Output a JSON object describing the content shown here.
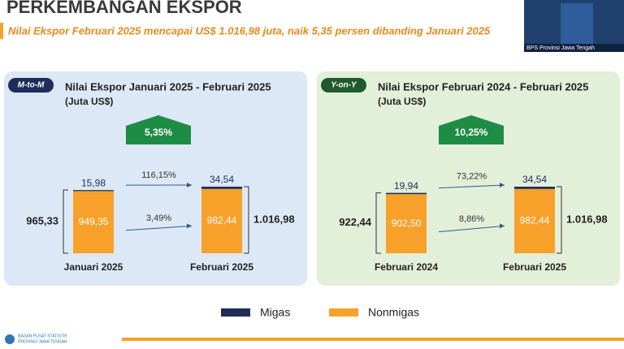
{
  "header": {
    "title": "PERKEMBANGAN EKSPOR",
    "subtitle": "Nilai Ekspor Februari 2025 mencapai US$ 1.016,98 juta, naik 5,35 persen dibanding Januari 2025"
  },
  "inset": {
    "label": "BPS Provinsi Jawa Tengah"
  },
  "footer": {
    "logo_text": [
      "BADAN PUSAT STATISTIK",
      "PROVINSI JAWA TENGAH"
    ]
  },
  "chart_data": [
    {
      "type": "bar",
      "stacked": true,
      "badge": "M-to-M",
      "badge_color": "#1f2d5a",
      "background": "#dce8f5",
      "title": "Nilai Ekspor Januari 2025 - Februari 2025",
      "subtitle": "(Juta US$)",
      "growth": "5,35%",
      "categories": [
        "Januari 2025",
        "Februari 2025"
      ],
      "series": [
        {
          "name": "Migas",
          "color": "#1f2d5a",
          "values": [
            15.98,
            34.54
          ],
          "value_labels": [
            "15,98",
            "34,54"
          ]
        },
        {
          "name": "Nonmigas",
          "color": "#f7a12b",
          "values": [
            949.35,
            982.44
          ],
          "value_labels": [
            "949,35",
            "982,44"
          ]
        }
      ],
      "totals": [
        965.33,
        1016.98
      ],
      "total_labels": [
        "965,33",
        "1.016,98"
      ],
      "change_labels": [
        "116,15%",
        "3,49%"
      ]
    },
    {
      "type": "bar",
      "stacked": true,
      "badge": "Y-on-Y",
      "badge_color": "#1f5a2c",
      "background": "#e2efd9",
      "title": "Nilai Ekspor Februari 2024 - Februari 2025",
      "subtitle": "(Juta US$)",
      "growth": "10,25%",
      "categories": [
        "Februari 2024",
        "Februari 2025"
      ],
      "series": [
        {
          "color": "#1f2d5a",
          "values": [
            19.94,
            34.54
          ],
          "value_labels": [
            "19,94",
            "34,54"
          ]
        },
        {
          "color": "#f7a12b",
          "values": [
            902.5,
            982.44
          ],
          "value_labels": [
            "902,50",
            "982,44"
          ]
        }
      ],
      "totals": [
        922.44,
        1016.98
      ],
      "total_labels": [
        "922,44",
        "1.016,98"
      ],
      "change_labels": [
        "73,22%",
        "8,86%"
      ]
    }
  ]
}
